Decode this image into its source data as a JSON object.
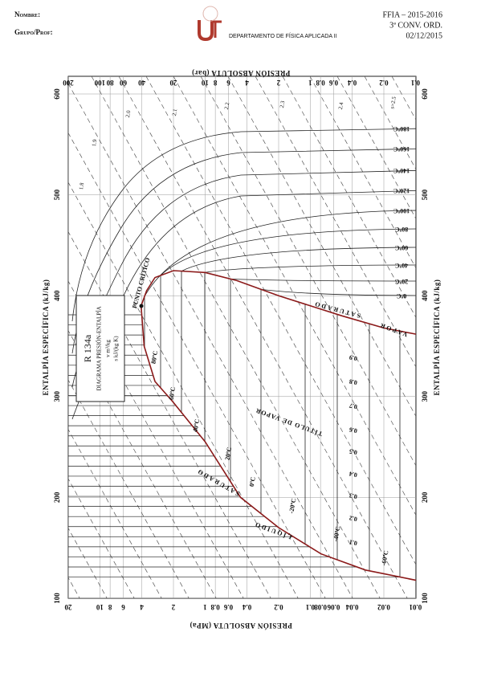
{
  "header": {
    "name_label": "Nombre:",
    "group_label": "Grupo/Prof:",
    "department": "DEPARTAMENTO DE FÍSICA APLICADA II",
    "course": "FFIA – 2015-2016",
    "exam": "3ª CONV. ORD.",
    "date": "02/12/2015"
  },
  "diagram": {
    "pressure_mpa_label": "PRESIÓN ABSOLUTA (MPa)",
    "pressure_bar_label": "PRESIÓN ABSOLUTA (bar)",
    "enthalpy_label": "ENTALPÍA ESPECÍFICA (kJ/kg)",
    "pressure_mpa_ticks": [
      "20",
      "10",
      "8",
      "6",
      "4",
      "2",
      "1",
      "0.8",
      "0.6",
      "0.4",
      "0.2",
      "0.1",
      "0.08",
      "0.06",
      "0.04",
      "0.02",
      "0.01"
    ],
    "pressure_bar_ticks": [
      "200",
      "100",
      "80",
      "60",
      "40",
      "20",
      "10",
      "8",
      "6",
      "4",
      "2",
      "1",
      "0.8",
      "0.6",
      "0.4",
      "0.2",
      "0.1"
    ],
    "enthalpy_ticks": [
      "600",
      "500",
      "400",
      "300",
      "200",
      "100"
    ],
    "info_box": {
      "refrigerant": "R 134a",
      "title": "DIAGRAMA PRESIÓN-ENTALPÍA",
      "units_v": "v  m³/kg",
      "units_s": "s  kJ/(kg K)"
    },
    "critical_point": "PUNTO CRÍTICO",
    "liquid_label": "LÍQUIDO",
    "saturated_labels": [
      "SATURADO",
      "SATURADO"
    ],
    "vapor_label": "VAPOR",
    "quality_title": "TÍTULO DE VAPOR",
    "isotherms_superheated": [
      "180ºC",
      "160ºC",
      "140ºC",
      "120ºC",
      "100ºC",
      "80ºC",
      "60ºC",
      "40ºC",
      "20ºC",
      "0ºC"
    ],
    "isotherms_dome": [
      "80ºC",
      "60ºC",
      "40ºC",
      "20ºC",
      "0ºC",
      "-20ºC",
      "-40ºC",
      "-60ºC"
    ],
    "quality_labels": [
      "0.9",
      "0.8",
      "0.7",
      "0.6",
      "0.5",
      "0.4",
      "0.3",
      "0.2",
      "0.1"
    ],
    "entropy_labels": [
      "s=2.5",
      "2.4",
      "2.3",
      "2.2",
      "2.1",
      "2.0",
      "1.9",
      "1.8"
    ]
  }
}
